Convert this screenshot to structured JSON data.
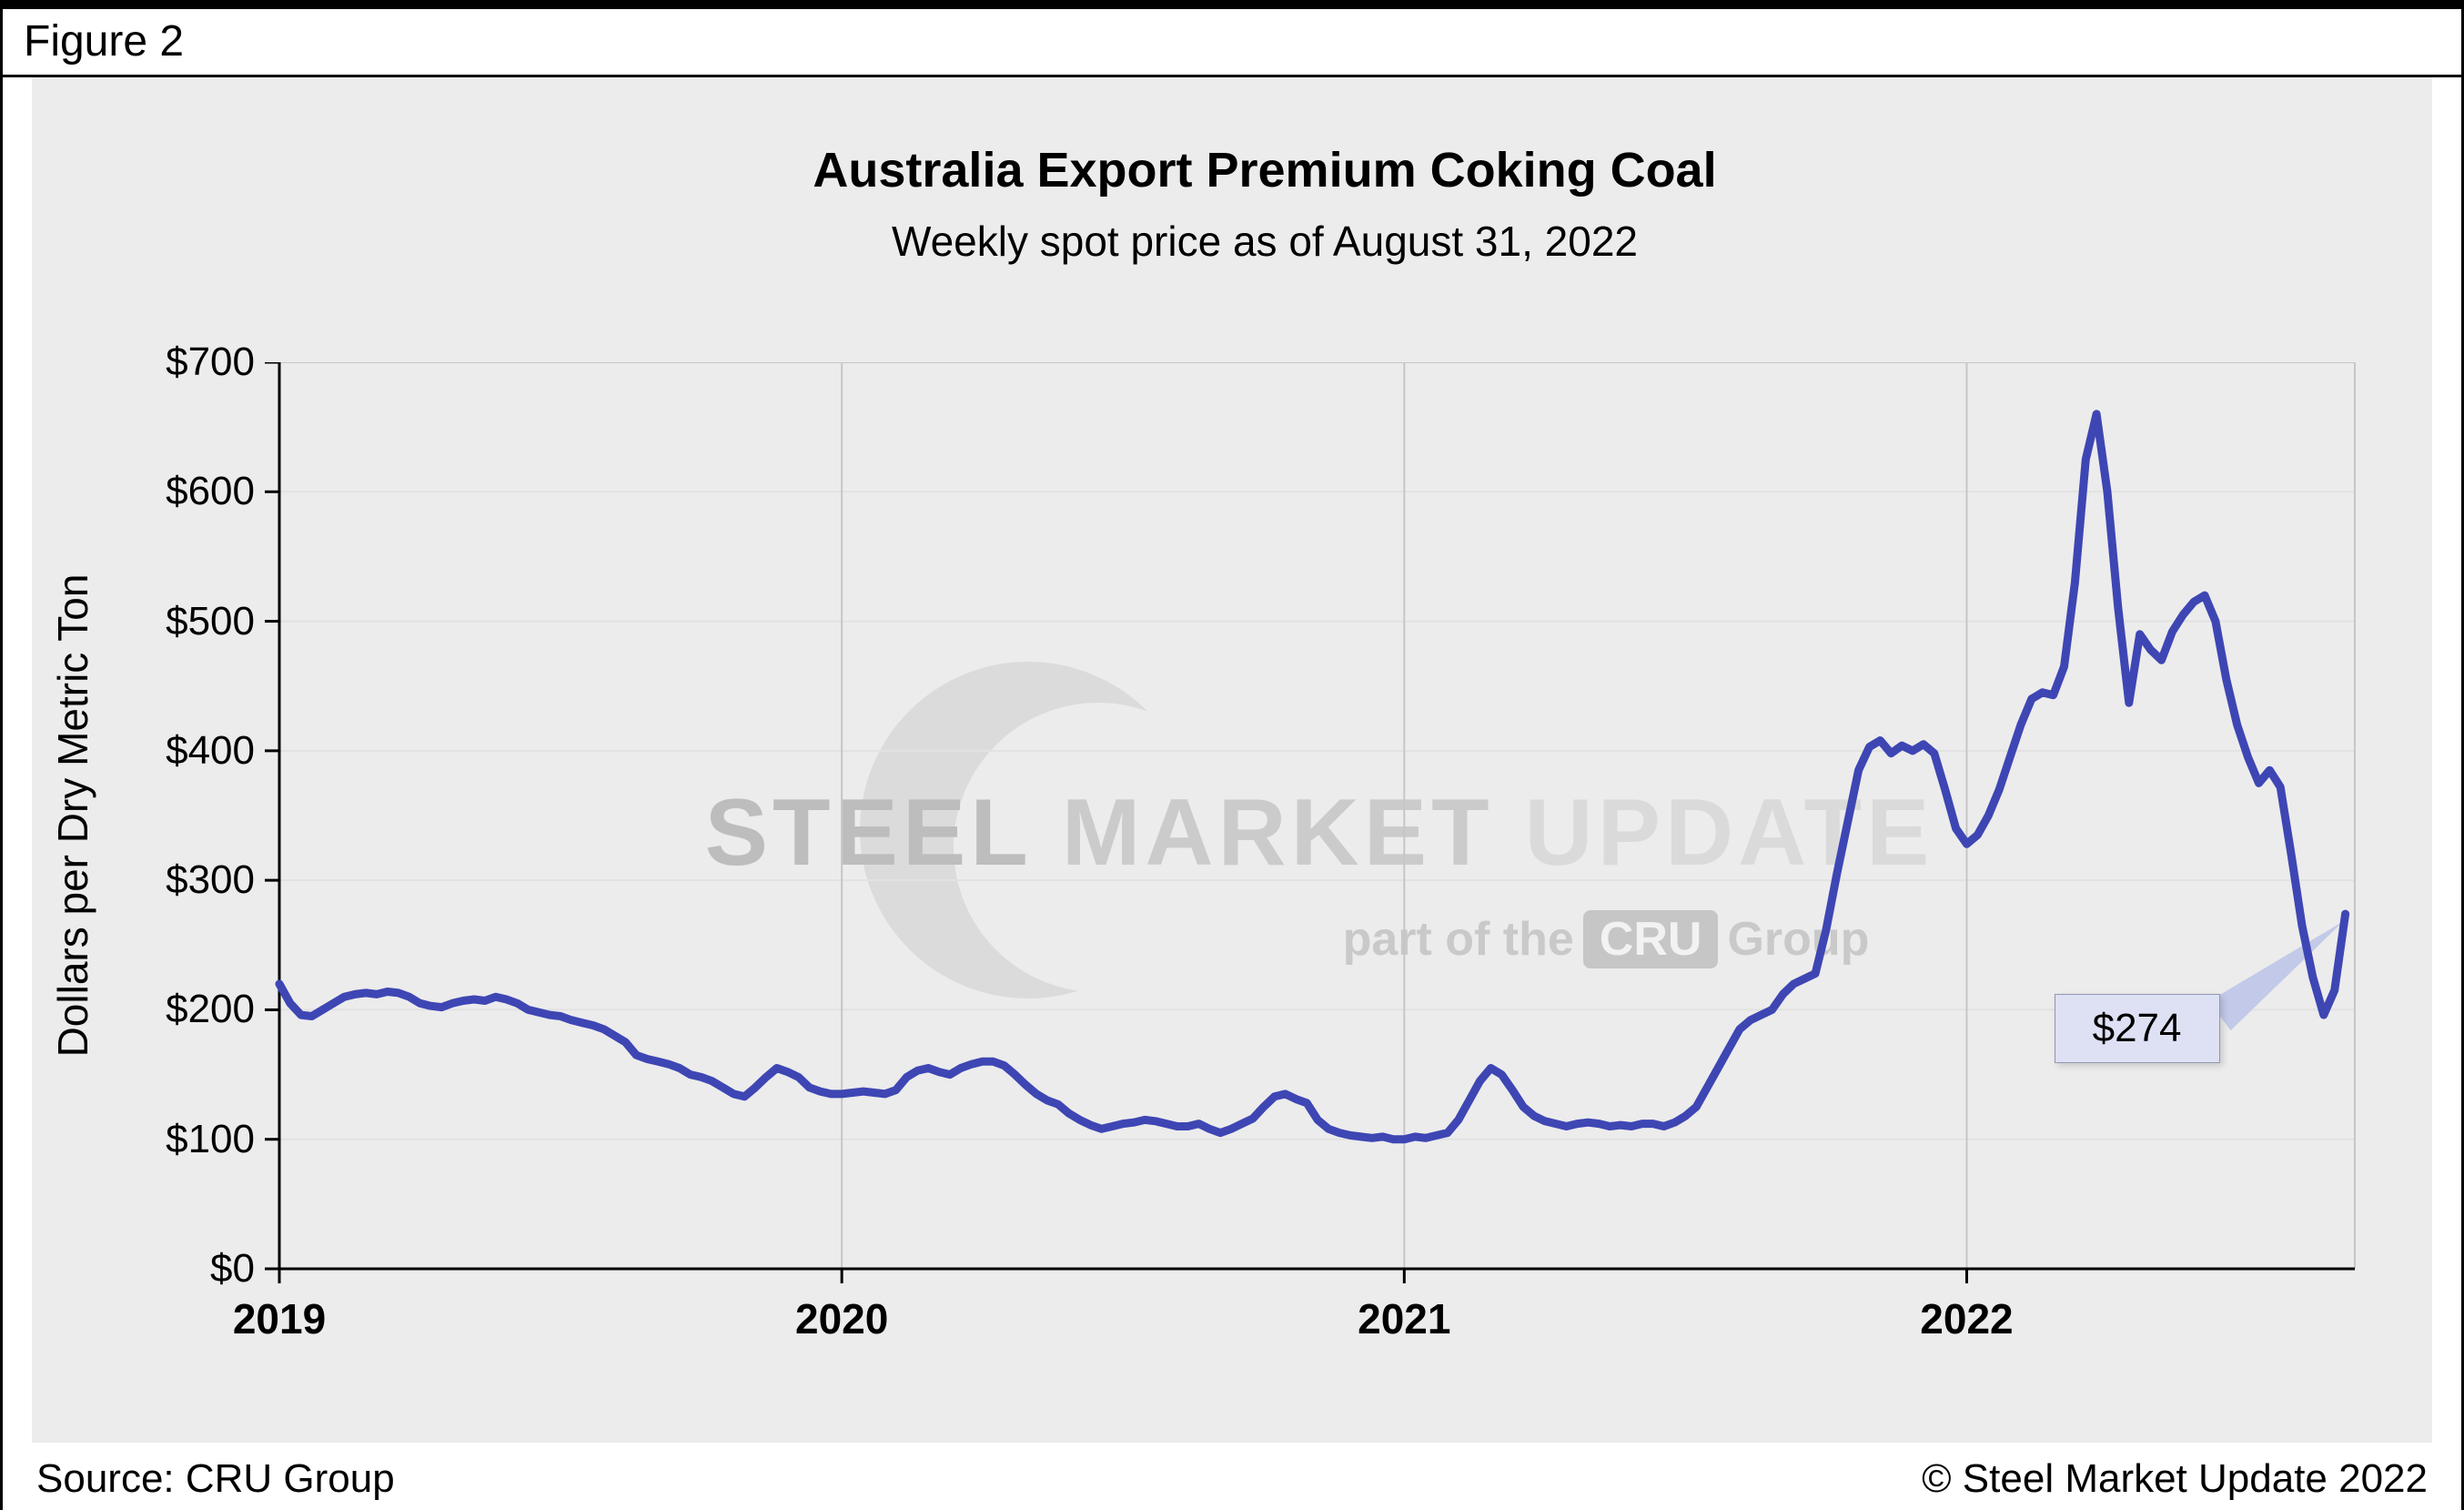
{
  "page": {
    "figure_label": "Figure 2"
  },
  "footer": {
    "source": "Source: CRU Group",
    "copyright": "© Steel Market Update 2022"
  },
  "watermark": {
    "line1": [
      "STEEL",
      "MARKET",
      "UPDATE"
    ],
    "line2_prefix": "part of the",
    "line2_badge": "CRU",
    "line2_suffix": "Group"
  },
  "chart_data": {
    "type": "line",
    "title": "Australia Export Premium Coking Coal",
    "subtitle": "Weekly spot price as of August 31, 2022",
    "ylabel": "Dollars per Dry Metric Ton",
    "ylim": [
      0,
      700
    ],
    "ytick_labels": [
      "$0",
      "$100",
      "$200",
      "$300",
      "$400",
      "$500",
      "$600",
      "$700"
    ],
    "x_axis": {
      "min": 2019,
      "max": 2022.69,
      "ticks": [
        2019,
        2020,
        2021,
        2022
      ],
      "step_years": 0.019231
    },
    "grid": {
      "vertical_year_lines": true,
      "horizontal_lines": true
    },
    "legend": "none",
    "annotation": {
      "label": "$274",
      "value": 274
    },
    "series": [
      {
        "name": "Weekly spot price, USD per dry metric ton",
        "color": "#3e46b4",
        "frequency": "weekly",
        "start_year": 2019,
        "values": [
          220,
          205,
          196,
          195,
          200,
          205,
          210,
          212,
          213,
          212,
          214,
          213,
          210,
          205,
          203,
          202,
          205,
          207,
          208,
          207,
          210,
          208,
          205,
          200,
          198,
          196,
          195,
          192,
          190,
          188,
          185,
          180,
          175,
          165,
          162,
          160,
          158,
          155,
          150,
          148,
          145,
          140,
          135,
          133,
          140,
          148,
          155,
          152,
          148,
          140,
          137,
          135,
          135,
          136,
          137,
          136,
          135,
          138,
          148,
          153,
          155,
          152,
          150,
          155,
          158,
          160,
          160,
          157,
          150,
          142,
          135,
          130,
          127,
          120,
          115,
          111,
          108,
          110,
          112,
          113,
          115,
          114,
          112,
          110,
          110,
          112,
          108,
          105,
          108,
          112,
          116,
          125,
          133,
          135,
          131,
          128,
          115,
          108,
          105,
          103,
          102,
          101,
          102,
          100,
          100,
          102,
          101,
          103,
          105,
          115,
          130,
          145,
          155,
          150,
          138,
          125,
          118,
          114,
          112,
          110,
          112,
          113,
          112,
          110,
          111,
          110,
          112,
          112,
          110,
          113,
          118,
          125,
          140,
          155,
          170,
          185,
          192,
          196,
          200,
          212,
          220,
          224,
          228,
          262,
          305,
          345,
          385,
          403,
          408,
          398,
          404,
          400,
          405,
          398,
          370,
          340,
          328,
          335,
          350,
          370,
          395,
          420,
          440,
          445,
          443,
          465,
          530,
          625,
          660,
          600,
          510,
          437,
          490,
          478,
          470,
          492,
          505,
          515,
          520,
          500,
          455,
          420,
          395,
          375,
          385,
          372,
          320,
          265,
          225,
          196,
          215,
          274
        ]
      }
    ]
  }
}
